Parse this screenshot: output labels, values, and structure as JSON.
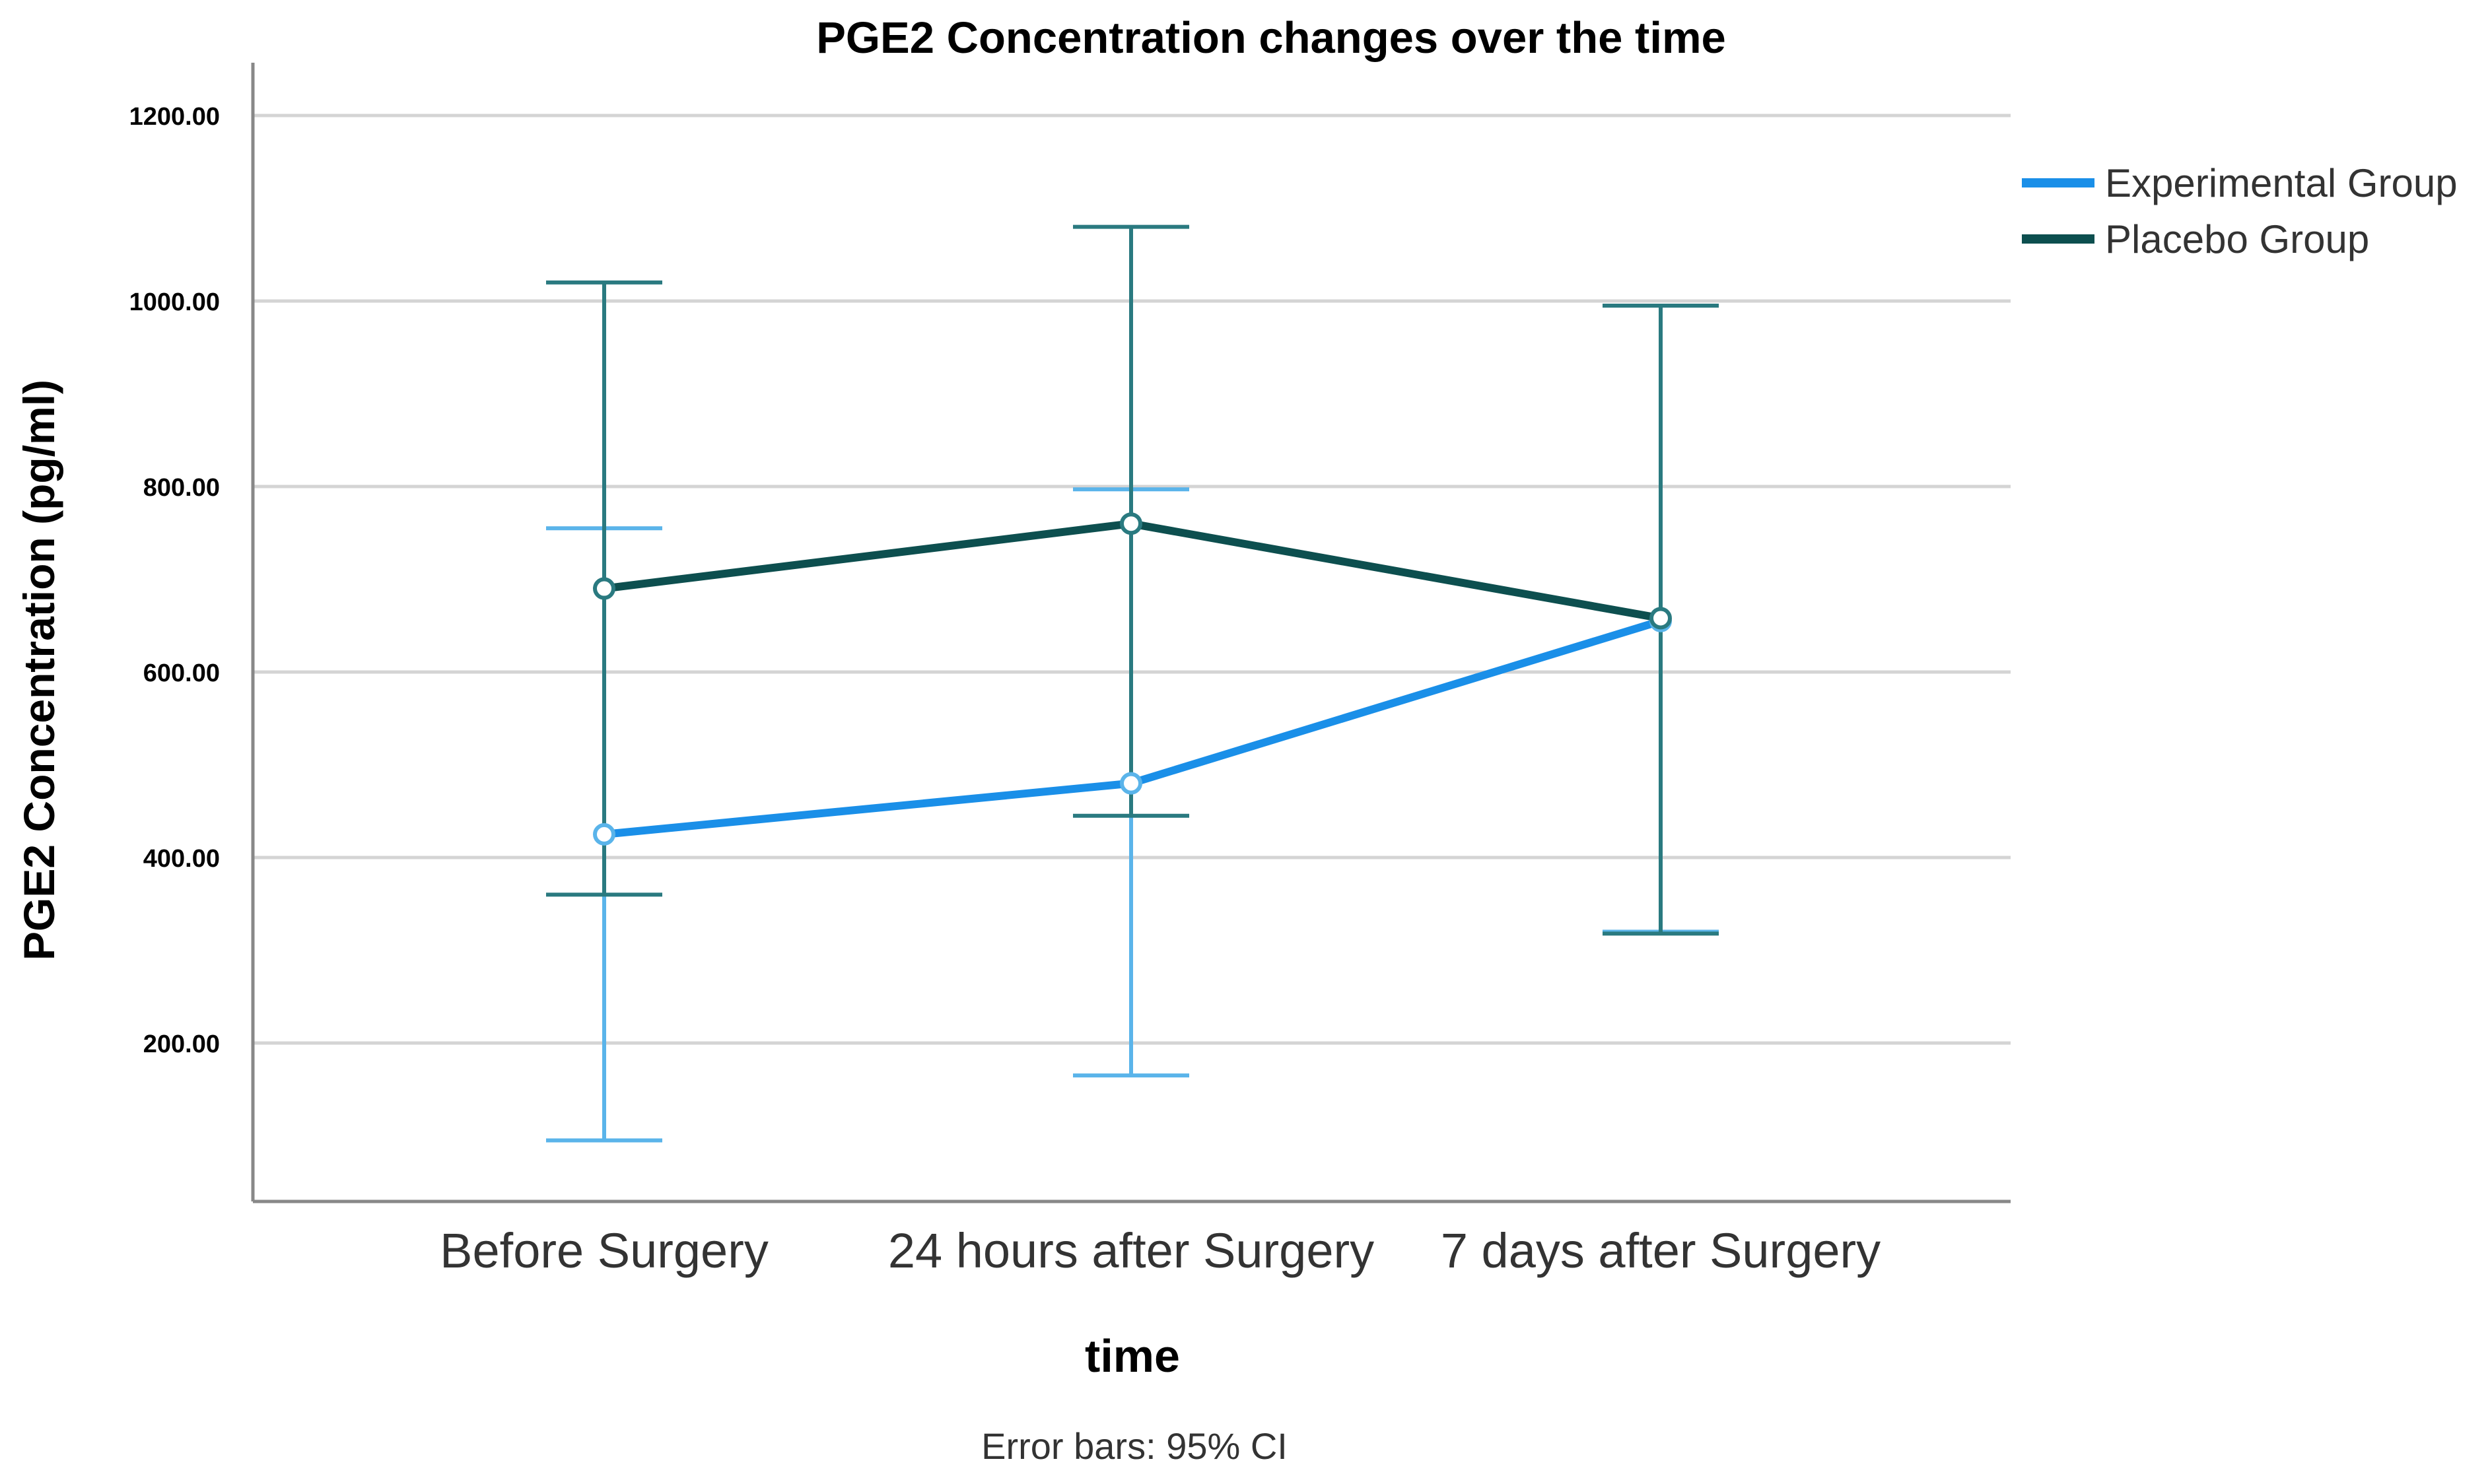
{
  "chart_data": {
    "type": "line",
    "title": "PGE2 Concentration changes over the time",
    "xlabel": "time",
    "ylabel": "PGE2 Concentration (pg/ml)",
    "ylim": [
      45,
      1250
    ],
    "yticks": [
      200,
      400,
      600,
      800,
      1000,
      1200
    ],
    "ytick_labels": [
      "200.00",
      "400.00",
      "600.00",
      "800.00",
      "1000.00",
      "1200.00"
    ],
    "categories": [
      "Before Surgery",
      "24 hours after Surgery",
      "7 days after Surgery"
    ],
    "grid": true,
    "legend_position": "right",
    "note": "Error bars: 95% CI",
    "series": [
      {
        "name": "Experimental Group",
        "color": "#1a8fe8",
        "bar_color": "#5ab4ea",
        "values": [
          425,
          480,
          655
        ],
        "ci_low": [
          95,
          165,
          320
        ],
        "ci_high": [
          755,
          797,
          995
        ]
      },
      {
        "name": "Placebo Group",
        "color": "#0d4f4f",
        "bar_color": "#2a7a80",
        "values": [
          690,
          760,
          658
        ],
        "ci_low": [
          360,
          445,
          318
        ],
        "ci_high": [
          1020,
          1080,
          995
        ]
      }
    ]
  }
}
